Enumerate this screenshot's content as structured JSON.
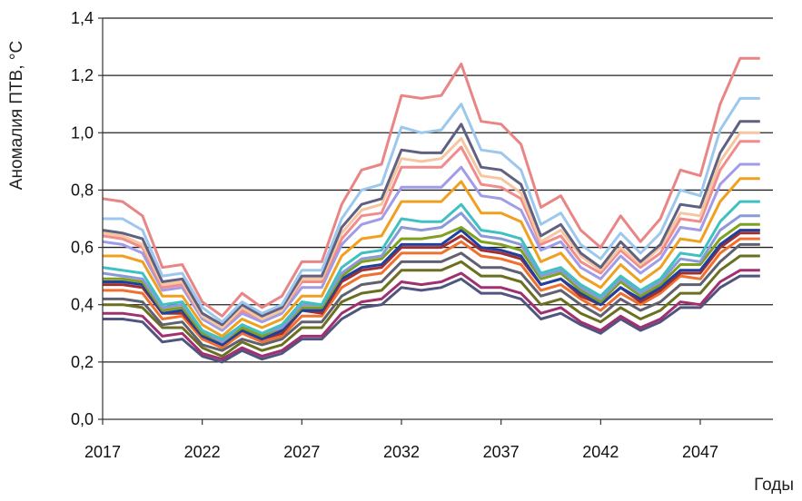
{
  "chart_data": {
    "type": "line",
    "ylabel": "Аномалия ПТВ, °С",
    "xlabel": "Годы",
    "ylim": [
      0.0,
      1.4
    ],
    "yticks": [
      "0,0",
      "0,2",
      "0,4",
      "0,6",
      "0,8",
      "1,0",
      "1,2",
      "1,4"
    ],
    "xticks": [
      "2017",
      "2022",
      "2027",
      "2032",
      "2037",
      "2042",
      "2047"
    ],
    "grid": "horizontal",
    "x": [
      2017,
      2018,
      2019,
      2020,
      2021,
      2022,
      2023,
      2024,
      2025,
      2026,
      2027,
      2028,
      2029,
      2030,
      2031,
      2032,
      2033,
      2034,
      2035,
      2036,
      2037,
      2038,
      2039,
      2040,
      2041,
      2042,
      2043,
      2044,
      2045,
      2046,
      2047,
      2048,
      2049,
      2050
    ],
    "series": [
      {
        "color": "#e98585",
        "values": [
          0.77,
          0.76,
          0.71,
          0.53,
          0.54,
          0.41,
          0.36,
          0.44,
          0.39,
          0.43,
          0.55,
          0.55,
          0.75,
          0.87,
          0.89,
          1.13,
          1.12,
          1.13,
          1.24,
          1.04,
          1.03,
          0.96,
          0.74,
          0.78,
          0.66,
          0.6,
          0.71,
          0.62,
          0.7,
          0.87,
          0.85,
          1.1,
          1.26,
          1.26
        ]
      },
      {
        "color": "#9cc8ee",
        "values": [
          0.7,
          0.7,
          0.66,
          0.5,
          0.51,
          0.39,
          0.34,
          0.41,
          0.37,
          0.4,
          0.52,
          0.52,
          0.7,
          0.8,
          0.82,
          1.02,
          1.0,
          1.01,
          1.1,
          0.94,
          0.93,
          0.87,
          0.68,
          0.72,
          0.61,
          0.56,
          0.65,
          0.58,
          0.65,
          0.8,
          0.78,
          1.01,
          1.12,
          1.12
        ]
      },
      {
        "color": "#606080",
        "values": [
          0.66,
          0.65,
          0.63,
          0.48,
          0.49,
          0.37,
          0.33,
          0.4,
          0.36,
          0.39,
          0.5,
          0.5,
          0.67,
          0.75,
          0.77,
          0.94,
          0.93,
          0.93,
          1.03,
          0.88,
          0.87,
          0.82,
          0.64,
          0.68,
          0.58,
          0.53,
          0.62,
          0.55,
          0.61,
          0.75,
          0.74,
          0.93,
          1.04,
          1.04
        ]
      },
      {
        "color": "#f5c6a0",
        "values": [
          0.65,
          0.64,
          0.61,
          0.47,
          0.48,
          0.36,
          0.32,
          0.39,
          0.35,
          0.38,
          0.49,
          0.49,
          0.65,
          0.73,
          0.75,
          0.91,
          0.9,
          0.91,
          0.98,
          0.85,
          0.84,
          0.79,
          0.62,
          0.66,
          0.57,
          0.52,
          0.6,
          0.54,
          0.6,
          0.72,
          0.71,
          0.9,
          1.0,
          1.0
        ]
      },
      {
        "color": "#f28b8b",
        "values": [
          0.64,
          0.63,
          0.6,
          0.46,
          0.47,
          0.36,
          0.32,
          0.38,
          0.35,
          0.38,
          0.48,
          0.48,
          0.63,
          0.71,
          0.72,
          0.88,
          0.88,
          0.88,
          0.95,
          0.82,
          0.81,
          0.77,
          0.61,
          0.64,
          0.55,
          0.51,
          0.59,
          0.53,
          0.58,
          0.7,
          0.69,
          0.87,
          0.97,
          0.97
        ]
      },
      {
        "color": "#a09ce8",
        "values": [
          0.62,
          0.61,
          0.58,
          0.45,
          0.46,
          0.35,
          0.31,
          0.37,
          0.34,
          0.37,
          0.46,
          0.46,
          0.61,
          0.68,
          0.7,
          0.81,
          0.81,
          0.81,
          0.88,
          0.78,
          0.77,
          0.73,
          0.59,
          0.62,
          0.53,
          0.49,
          0.57,
          0.51,
          0.56,
          0.67,
          0.66,
          0.82,
          0.89,
          0.89
        ]
      },
      {
        "color": "#f0a020",
        "values": [
          0.57,
          0.57,
          0.55,
          0.43,
          0.43,
          0.33,
          0.29,
          0.35,
          0.32,
          0.35,
          0.43,
          0.43,
          0.57,
          0.63,
          0.64,
          0.76,
          0.76,
          0.76,
          0.83,
          0.72,
          0.72,
          0.69,
          0.55,
          0.58,
          0.5,
          0.46,
          0.54,
          0.48,
          0.53,
          0.63,
          0.62,
          0.76,
          0.84,
          0.84
        ]
      },
      {
        "color": "#40c0c0",
        "values": [
          0.53,
          0.52,
          0.51,
          0.4,
          0.41,
          0.31,
          0.28,
          0.33,
          0.3,
          0.33,
          0.41,
          0.4,
          0.53,
          0.58,
          0.59,
          0.7,
          0.69,
          0.69,
          0.75,
          0.66,
          0.65,
          0.63,
          0.51,
          0.53,
          0.47,
          0.43,
          0.5,
          0.45,
          0.49,
          0.58,
          0.57,
          0.69,
          0.76,
          0.76
        ]
      },
      {
        "color": "#8a9ad8",
        "values": [
          0.51,
          0.5,
          0.49,
          0.39,
          0.4,
          0.31,
          0.27,
          0.33,
          0.3,
          0.32,
          0.4,
          0.4,
          0.51,
          0.56,
          0.57,
          0.67,
          0.66,
          0.67,
          0.72,
          0.64,
          0.63,
          0.61,
          0.5,
          0.52,
          0.46,
          0.42,
          0.49,
          0.44,
          0.48,
          0.56,
          0.55,
          0.66,
          0.71,
          0.71
        ]
      },
      {
        "color": "#80a020",
        "values": [
          0.49,
          0.49,
          0.48,
          0.38,
          0.39,
          0.3,
          0.27,
          0.32,
          0.29,
          0.32,
          0.39,
          0.39,
          0.5,
          0.55,
          0.56,
          0.63,
          0.63,
          0.64,
          0.67,
          0.62,
          0.61,
          0.59,
          0.49,
          0.51,
          0.45,
          0.41,
          0.48,
          0.43,
          0.47,
          0.54,
          0.54,
          0.63,
          0.68,
          0.68
        ]
      },
      {
        "color": "#2040a0",
        "values": [
          0.48,
          0.48,
          0.47,
          0.37,
          0.38,
          0.29,
          0.26,
          0.31,
          0.28,
          0.31,
          0.38,
          0.38,
          0.49,
          0.53,
          0.54,
          0.61,
          0.61,
          0.61,
          0.66,
          0.6,
          0.59,
          0.57,
          0.47,
          0.49,
          0.44,
          0.4,
          0.46,
          0.42,
          0.46,
          0.52,
          0.52,
          0.61,
          0.66,
          0.66
        ]
      },
      {
        "color": "#a03030",
        "values": [
          0.47,
          0.47,
          0.46,
          0.37,
          0.37,
          0.29,
          0.26,
          0.31,
          0.28,
          0.3,
          0.38,
          0.37,
          0.48,
          0.52,
          0.53,
          0.6,
          0.6,
          0.6,
          0.64,
          0.59,
          0.58,
          0.56,
          0.47,
          0.49,
          0.43,
          0.4,
          0.46,
          0.41,
          0.45,
          0.51,
          0.51,
          0.6,
          0.65,
          0.65
        ]
      },
      {
        "color": "#f07030",
        "values": [
          0.45,
          0.45,
          0.44,
          0.35,
          0.36,
          0.28,
          0.25,
          0.3,
          0.27,
          0.29,
          0.36,
          0.36,
          0.46,
          0.5,
          0.51,
          0.58,
          0.58,
          0.58,
          0.62,
          0.57,
          0.56,
          0.54,
          0.45,
          0.47,
          0.42,
          0.38,
          0.44,
          0.4,
          0.44,
          0.5,
          0.49,
          0.58,
          0.63,
          0.63
        ]
      },
      {
        "color": "#606070",
        "values": [
          0.42,
          0.42,
          0.41,
          0.33,
          0.34,
          0.26,
          0.24,
          0.28,
          0.26,
          0.28,
          0.34,
          0.34,
          0.43,
          0.47,
          0.48,
          0.55,
          0.55,
          0.55,
          0.58,
          0.53,
          0.53,
          0.51,
          0.43,
          0.45,
          0.4,
          0.36,
          0.42,
          0.38,
          0.41,
          0.47,
          0.47,
          0.55,
          0.61,
          0.61
        ]
      },
      {
        "color": "#6a7020",
        "values": [
          0.4,
          0.4,
          0.39,
          0.32,
          0.32,
          0.25,
          0.22,
          0.27,
          0.24,
          0.26,
          0.32,
          0.32,
          0.41,
          0.44,
          0.45,
          0.52,
          0.52,
          0.52,
          0.55,
          0.5,
          0.5,
          0.48,
          0.4,
          0.42,
          0.37,
          0.34,
          0.39,
          0.35,
          0.38,
          0.44,
          0.44,
          0.52,
          0.57,
          0.57
        ]
      },
      {
        "color": "#a03070",
        "values": [
          0.37,
          0.37,
          0.36,
          0.29,
          0.3,
          0.23,
          0.21,
          0.25,
          0.22,
          0.24,
          0.29,
          0.29,
          0.37,
          0.41,
          0.42,
          0.48,
          0.47,
          0.48,
          0.51,
          0.46,
          0.46,
          0.44,
          0.37,
          0.39,
          0.34,
          0.31,
          0.36,
          0.32,
          0.35,
          0.41,
          0.4,
          0.48,
          0.52,
          0.52
        ]
      },
      {
        "color": "#505580",
        "values": [
          0.35,
          0.35,
          0.34,
          0.27,
          0.28,
          0.22,
          0.2,
          0.24,
          0.21,
          0.23,
          0.28,
          0.28,
          0.35,
          0.39,
          0.4,
          0.46,
          0.45,
          0.46,
          0.49,
          0.44,
          0.44,
          0.42,
          0.35,
          0.37,
          0.33,
          0.3,
          0.35,
          0.31,
          0.34,
          0.39,
          0.39,
          0.46,
          0.5,
          0.5
        ]
      }
    ]
  }
}
